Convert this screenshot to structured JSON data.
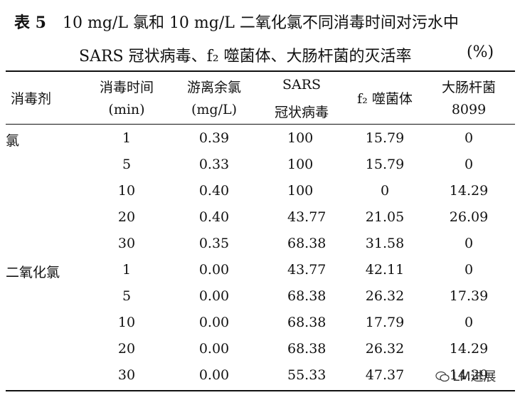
{
  "caption": {
    "table_no": "表 5",
    "title_line1": "10 mg/L 氯和 10 mg/L 二氧化氯不同消毒时间对污水中",
    "title_line2": "SARS 冠状病毒、f₂ 噬菌体、大肠杆菌的灭活率",
    "unit": "(%)"
  },
  "headers": {
    "disinfectant": "消毒剂",
    "time": "消毒时间",
    "time_unit": "(min)",
    "chlorine": "游离余氯",
    "chlorine_unit": "(mg/L)",
    "sars": "SARS",
    "sars_2": "冠状病毒",
    "phage": "f₂ 噬菌体",
    "ecoli": "大肠杆菌",
    "ecoli_2": "8099"
  },
  "rows": [
    {
      "agent": "氯",
      "time": "1",
      "residual": "0.39",
      "sars": "100",
      "phage": "15.79",
      "ecoli": "0"
    },
    {
      "agent": "",
      "time": "5",
      "residual": "0.33",
      "sars": "100",
      "phage": "15.79",
      "ecoli": "0"
    },
    {
      "agent": "",
      "time": "10",
      "residual": "0.40",
      "sars": "100",
      "phage": "0",
      "ecoli": "14.29"
    },
    {
      "agent": "",
      "time": "20",
      "residual": "0.40",
      "sars": "43.77",
      "phage": "21.05",
      "ecoli": "26.09"
    },
    {
      "agent": "",
      "time": "30",
      "residual": "0.35",
      "sars": "68.38",
      "phage": "31.58",
      "ecoli": "0"
    },
    {
      "agent": "二氧化氯",
      "time": "1",
      "residual": "0.00",
      "sars": "43.77",
      "phage": "42.11",
      "ecoli": "0"
    },
    {
      "agent": "",
      "time": "5",
      "residual": "0.00",
      "sars": "68.38",
      "phage": "26.32",
      "ecoli": "17.39"
    },
    {
      "agent": "",
      "time": "10",
      "residual": "0.00",
      "sars": "68.38",
      "phage": "17.79",
      "ecoli": "0"
    },
    {
      "agent": "",
      "time": "20",
      "residual": "0.00",
      "sars": "68.38",
      "phage": "26.32",
      "ecoli": "14.29"
    },
    {
      "agent": "",
      "time": "30",
      "residual": "0.00",
      "sars": "55.33",
      "phage": "47.37",
      "ecoli": "14.29"
    }
  ],
  "watermark": "LM进展"
}
